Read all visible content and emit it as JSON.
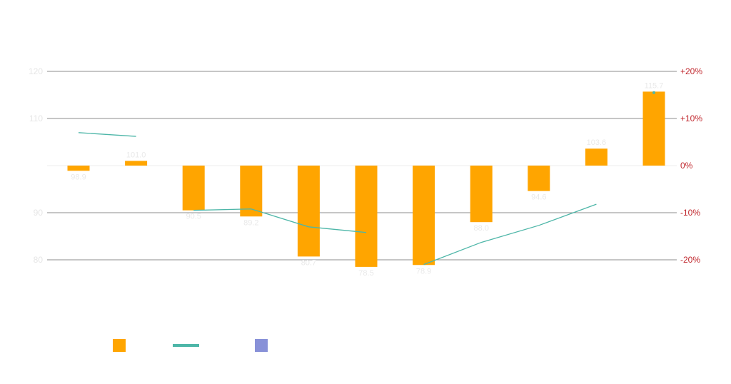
{
  "chart_data": {
    "type": "bar",
    "categories": [
      "",
      "",
      "",
      "",
      "",
      "",
      "",
      "",
      "",
      "",
      ""
    ],
    "baseline": 100,
    "series": [
      {
        "kind": "bar",
        "color": "#ffa500",
        "axis": "left",
        "values": [
          98.9,
          101.0,
          90.5,
          89.2,
          80.7,
          78.5,
          78.9,
          88.0,
          94.6,
          103.6,
          115.7
        ],
        "labels": [
          "98.9",
          "101.0",
          "90.5",
          "89.2",
          "80.7",
          "78.5",
          "78.9",
          "88.0",
          "94.6",
          "103.6",
          "115.7"
        ]
      },
      {
        "kind": "line",
        "color": "#4db6a8",
        "axis": "right",
        "segments": [
          [
            [
              0,
              7.0
            ],
            [
              1,
              6.2
            ]
          ],
          [
            [
              2,
              -9.5
            ],
            [
              3,
              -9.2
            ],
            [
              4,
              -13.0
            ],
            [
              5,
              -14.2
            ]
          ],
          [
            [
              6,
              -21.0
            ],
            [
              7,
              -16.3
            ],
            [
              8,
              -12.7
            ],
            [
              9,
              -8.2
            ]
          ],
          [
            [
              10,
              15.5
            ]
          ]
        ]
      }
    ],
    "left_axis": {
      "min": 80,
      "max": 120,
      "ticks": [
        "80",
        "90",
        "110",
        "120"
      ],
      "tick_values": [
        80,
        90,
        110,
        120
      ]
    },
    "right_axis": {
      "min": -20,
      "max": 20,
      "ticks": [
        "-20%",
        "-10%",
        "0%",
        "+10%",
        "+20%"
      ],
      "tick_values": [
        -20,
        -10,
        0,
        10,
        20
      ]
    },
    "grid": true,
    "legend": {
      "position": "bottom-left",
      "items": [
        {
          "symbol": "square",
          "color": "#ffa500",
          "label": ""
        },
        {
          "symbol": "line",
          "color": "#4db6a8",
          "label": ""
        },
        {
          "symbol": "square",
          "color": "#8891d8",
          "label": ""
        }
      ]
    }
  }
}
